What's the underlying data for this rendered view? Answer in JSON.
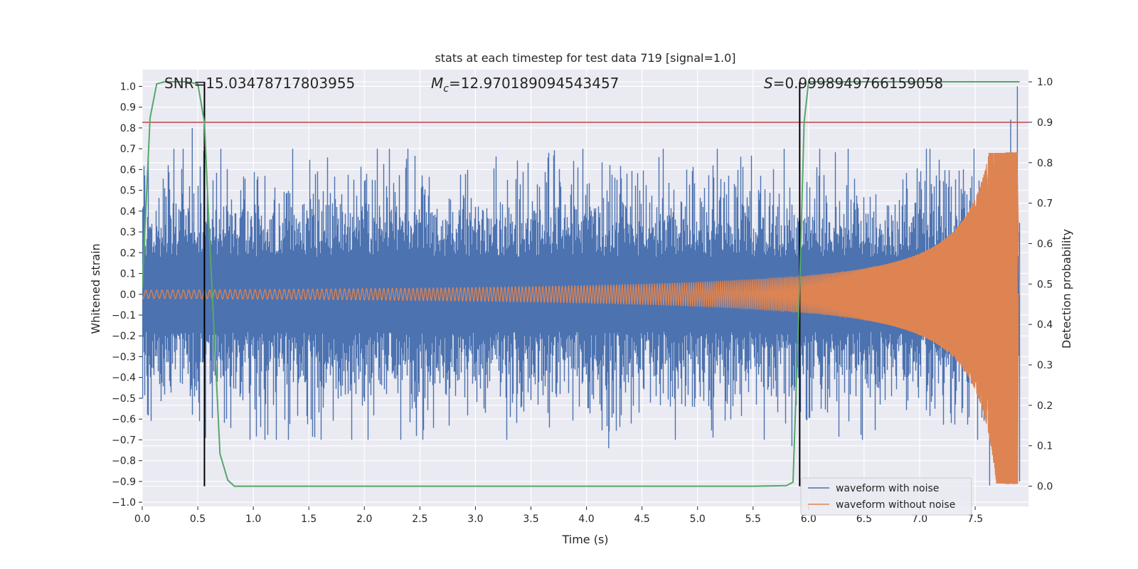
{
  "chart_data": {
    "type": "line",
    "title": "stats at each timestep for test data 719 [signal=1.0]",
    "xlabel": "Time (s)",
    "ylabel_left": "Whitened strain",
    "ylabel_right": "Detection probability",
    "xlim": [
      0.0,
      7.98
    ],
    "ylim_left": [
      -1.02,
      1.08
    ],
    "ylim_right": [
      -0.05,
      1.03
    ],
    "x_ticks": [
      "0.0",
      "0.5",
      "1.0",
      "1.5",
      "2.0",
      "2.5",
      "3.0",
      "3.5",
      "4.0",
      "4.5",
      "5.0",
      "5.5",
      "6.0",
      "6.5",
      "7.0",
      "7.5"
    ],
    "y_left_ticks": [
      "1.0",
      "0.9",
      "0.8",
      "0.7",
      "0.6",
      "0.5",
      "0.4",
      "0.3",
      "0.2",
      "0.1",
      "0.0",
      "−0.1",
      "−0.2",
      "−0.3",
      "−0.4",
      "−0.5",
      "−0.6",
      "−0.7",
      "−0.8",
      "−0.9",
      "−1.0"
    ],
    "y_right_ticks": [
      "1.0",
      "0.9",
      "0.8",
      "0.7",
      "0.6",
      "0.5",
      "0.4",
      "0.3",
      "0.2",
      "0.1",
      "0.0"
    ],
    "annotations": {
      "snr": "SNR=15.03478717803955",
      "mc_symbol": "M",
      "mc_sub": "c",
      "mc_value": "=12.970189094543457",
      "s_symbol": "S",
      "s_value": "=0.9998949766159058"
    },
    "threshold": {
      "axis": "right",
      "value": 0.9,
      "color": "#c44e52"
    },
    "vertical_lines": [
      {
        "x": 0.56,
        "color": "#000000"
      },
      {
        "x": 5.92,
        "color": "#000000"
      }
    ],
    "series": [
      {
        "name": "waveform with noise",
        "axis": "left",
        "color": "#4c72b0",
        "kind": "noise",
        "amplitude_std": 0.2,
        "range": [
          -0.92,
          1.0
        ]
      },
      {
        "name": "waveform without noise",
        "axis": "left",
        "color": "#dd8452",
        "kind": "chirp",
        "merger_time": 7.88,
        "peak_amplitude": 0.68,
        "min_amplitude": -0.91
      },
      {
        "name": "detection probability",
        "axis": "right",
        "color": "#55a868",
        "kind": "line",
        "x": [
          0.0,
          0.07,
          0.13,
          0.2,
          0.3,
          0.4,
          0.5,
          0.56,
          0.6,
          0.7,
          0.77,
          0.83,
          1.0,
          2.0,
          3.0,
          4.0,
          5.0,
          5.5,
          5.8,
          5.86,
          5.92,
          5.96,
          6.0,
          6.5,
          7.0,
          7.5,
          7.9
        ],
        "values": [
          0.49,
          0.91,
          0.995,
          1.0,
          1.0,
          1.0,
          0.995,
          0.9,
          0.65,
          0.08,
          0.015,
          0.0,
          0.0,
          0.0,
          0.0,
          0.0,
          0.0,
          0.0,
          0.0015,
          0.01,
          0.5,
          0.9,
          1.0,
          1.0,
          1.0,
          1.0,
          1.0
        ]
      }
    ],
    "legend": {
      "position": "lower-right",
      "entries": [
        {
          "label": "waveform with noise",
          "color": "#4c72b0"
        },
        {
          "label": "waveform without noise",
          "color": "#dd8452"
        }
      ]
    },
    "grid": true,
    "background": "#eaeaf2"
  }
}
